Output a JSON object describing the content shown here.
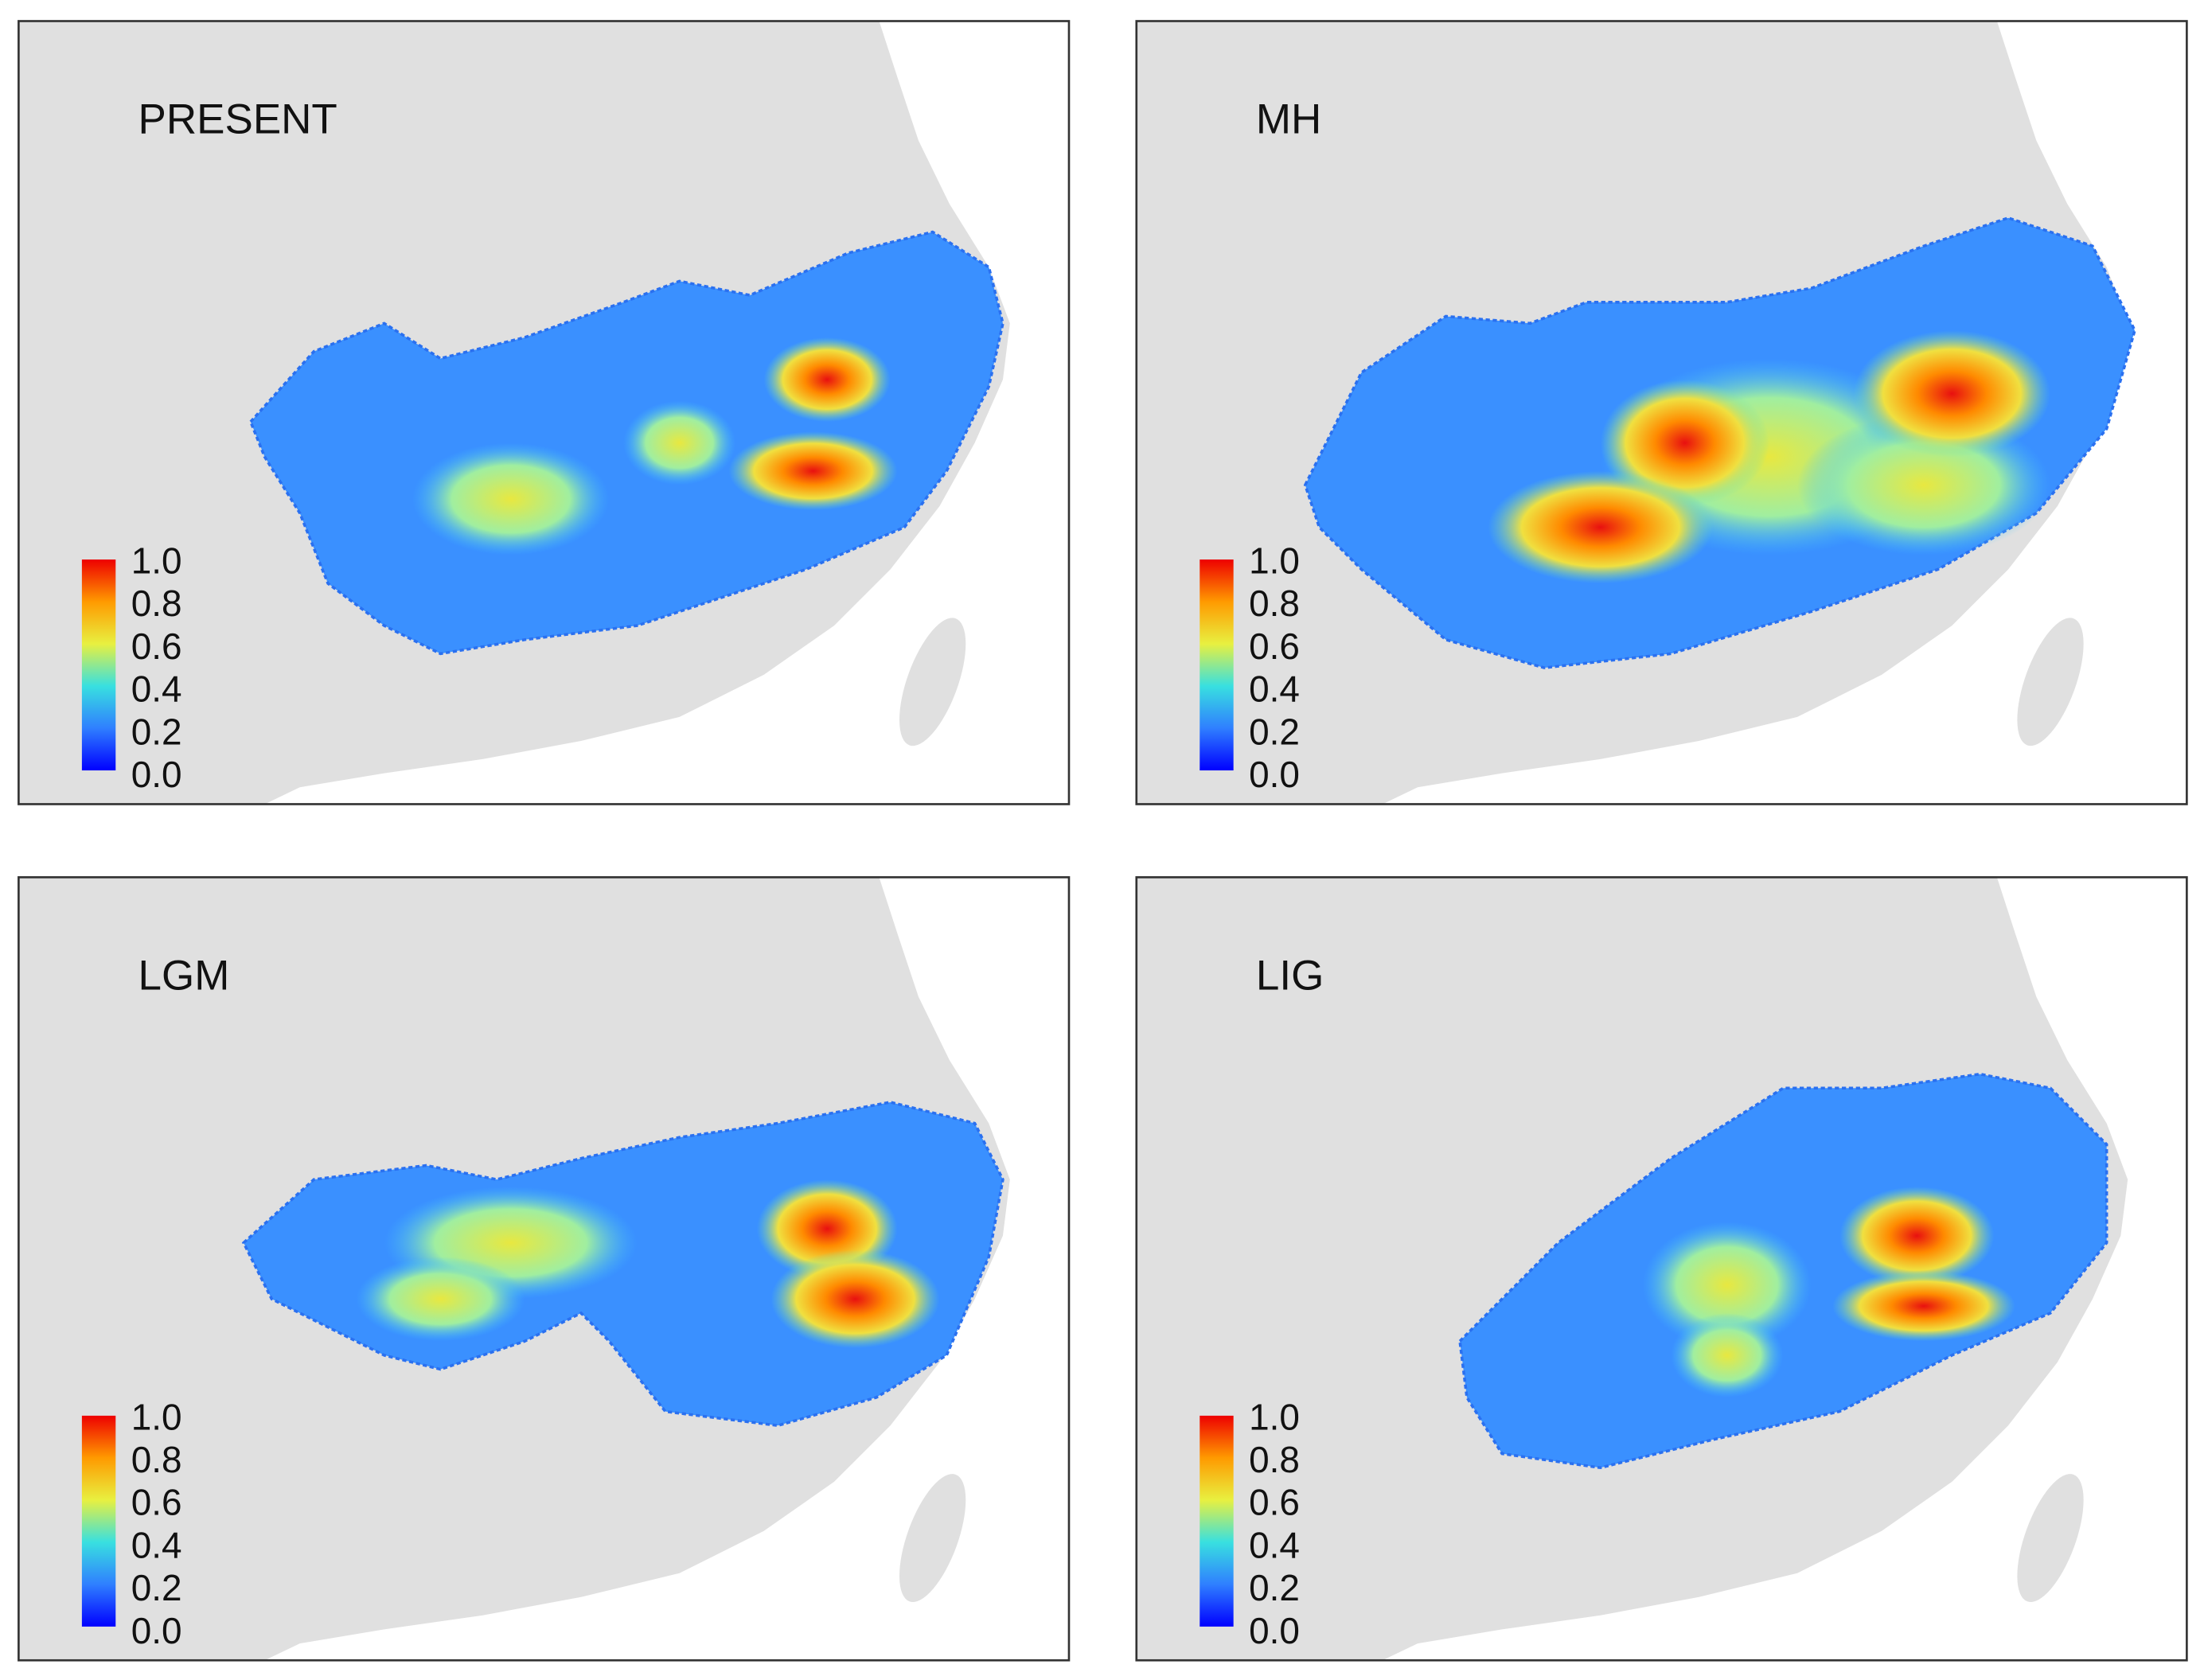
{
  "panels": [
    {
      "title": "PRESENT",
      "colorbar": [
        "1.0",
        "0.8",
        "0.6",
        "0.4",
        "0.2",
        "0.0"
      ]
    },
    {
      "title": "MH",
      "colorbar": [
        "1.0",
        "0.8",
        "0.6",
        "0.4",
        "0.2",
        "0.0"
      ]
    },
    {
      "title": "LGM",
      "colorbar": [
        "1.0",
        "0.8",
        "0.6",
        "0.4",
        "0.2",
        "0.0"
      ]
    },
    {
      "title": "LIG",
      "colorbar": [
        "1.0",
        "0.8",
        "0.6",
        "0.4",
        "0.2",
        "0.0"
      ]
    }
  ]
}
